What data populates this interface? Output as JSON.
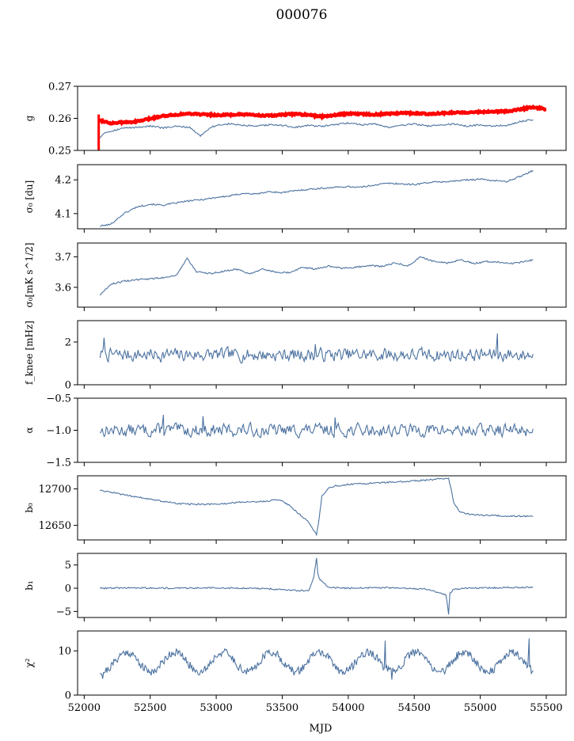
{
  "title": "000076",
  "xlabel": "MJD",
  "xlim": [
    51950,
    55650
  ],
  "xticks": [
    52000,
    52500,
    53000,
    53500,
    54000,
    54500,
    55000,
    55500
  ],
  "colors": {
    "series": "#4c72a0",
    "reference": "#ff0000"
  },
  "chart_data": [
    {
      "type": "line",
      "key": "g",
      "ylabel": "g",
      "ylim": [
        0.25,
        0.27
      ],
      "yticks": [
        0.25,
        0.26,
        0.27
      ],
      "tickfmt": 2,
      "reference": {
        "x": [
          52110,
          52200,
          52400,
          52600,
          52800,
          53000,
          53200,
          53400,
          53600,
          53800,
          54000,
          54200,
          54400,
          54600,
          54800,
          55000,
          55200,
          55300,
          55400,
          55500
        ],
        "y": [
          0.2595,
          0.2585,
          0.259,
          0.2608,
          0.2615,
          0.261,
          0.2612,
          0.2608,
          0.2614,
          0.2606,
          0.2615,
          0.2612,
          0.2617,
          0.2614,
          0.2618,
          0.262,
          0.2622,
          0.2628,
          0.2635,
          0.2628
        ]
      },
      "x": [
        52120,
        52150,
        52200,
        52300,
        52400,
        52500,
        52600,
        52700,
        52800,
        52880,
        52950,
        53000,
        53100,
        53200,
        53300,
        53400,
        53500,
        53600,
        53700,
        53800,
        53900,
        54000,
        54100,
        54200,
        54300,
        54400,
        54500,
        54600,
        54700,
        54800,
        54900,
        55000,
        55100,
        55200,
        55300,
        55400
      ],
      "y": [
        0.254,
        0.2555,
        0.256,
        0.257,
        0.2572,
        0.2576,
        0.257,
        0.2575,
        0.2572,
        0.2545,
        0.257,
        0.2578,
        0.2583,
        0.2578,
        0.2575,
        0.258,
        0.2578,
        0.2572,
        0.2578,
        0.2575,
        0.258,
        0.2586,
        0.258,
        0.2583,
        0.2572,
        0.2578,
        0.2583,
        0.2576,
        0.258,
        0.2582,
        0.2576,
        0.258,
        0.2576,
        0.2578,
        0.259,
        0.2596
      ]
    },
    {
      "type": "line",
      "key": "sigma0-du",
      "ylabel": "σ₀ [du]",
      "ylim": [
        4.055,
        4.245
      ],
      "yticks": [
        4.1,
        4.2
      ],
      "tickfmt": 1,
      "x": [
        52120,
        52200,
        52300,
        52400,
        52500,
        52600,
        52700,
        52800,
        52900,
        53000,
        53100,
        53200,
        53300,
        53400,
        53500,
        53600,
        53700,
        53800,
        53900,
        54000,
        54100,
        54200,
        54300,
        54400,
        54500,
        54600,
        54700,
        54800,
        54900,
        55000,
        55100,
        55200,
        55300,
        55400
      ],
      "y": [
        4.063,
        4.068,
        4.1,
        4.12,
        4.128,
        4.125,
        4.132,
        4.138,
        4.142,
        4.148,
        4.152,
        4.16,
        4.158,
        4.165,
        4.162,
        4.168,
        4.172,
        4.175,
        4.178,
        4.18,
        4.178,
        4.185,
        4.19,
        4.188,
        4.186,
        4.192,
        4.194,
        4.196,
        4.2,
        4.202,
        4.198,
        4.195,
        4.21,
        4.228
      ]
    },
    {
      "type": "line",
      "key": "sigma0-mk",
      "ylabel": "σ₀[mK s^1/2]",
      "ylim": [
        3.535,
        3.745
      ],
      "yticks": [
        3.6,
        3.7
      ],
      "tickfmt": 1,
      "x": [
        52120,
        52200,
        52300,
        52400,
        52500,
        52600,
        52700,
        52780,
        52850,
        52950,
        53050,
        53150,
        53250,
        53350,
        53450,
        53550,
        53650,
        53750,
        53850,
        53950,
        54050,
        54150,
        54250,
        54350,
        54450,
        54550,
        54650,
        54750,
        54850,
        54950,
        55050,
        55150,
        55250,
        55400
      ],
      "y": [
        3.575,
        3.61,
        3.62,
        3.625,
        3.628,
        3.632,
        3.64,
        3.695,
        3.65,
        3.645,
        3.652,
        3.66,
        3.645,
        3.66,
        3.65,
        3.648,
        3.665,
        3.66,
        3.67,
        3.662,
        3.665,
        3.672,
        3.668,
        3.68,
        3.67,
        3.7,
        3.685,
        3.68,
        3.69,
        3.678,
        3.685,
        3.682,
        3.678,
        3.69
      ]
    },
    {
      "type": "line",
      "key": "fknee",
      "ylabel": "f_knee [mHz]",
      "ylim": [
        0,
        3
      ],
      "yticks": [
        0,
        2
      ],
      "tickfmt": 0,
      "noise": {
        "x0": 52120,
        "x1": 55400,
        "n": 420,
        "base": 1.4,
        "amp": 0.28,
        "seed": 7
      },
      "x": [
        52150,
        53750,
        55130
      ],
      "y": [
        2.2,
        1.9,
        2.4
      ]
    },
    {
      "type": "line",
      "key": "alpha",
      "ylabel": "α",
      "ylim": [
        -1.5,
        -0.5
      ],
      "yticks": [
        -1.5,
        -1.0,
        -0.5
      ],
      "tickfmt": 1,
      "noise": {
        "x0": 52120,
        "x1": 55400,
        "n": 420,
        "base": -1.0,
        "amp": 0.09,
        "seed": 13
      },
      "x": [
        52600,
        52900,
        53900
      ],
      "y": [
        -0.76,
        -0.78,
        -0.8
      ]
    },
    {
      "type": "line",
      "key": "b0",
      "ylabel": "b₀",
      "ylim": [
        12630,
        12718
      ],
      "yticks": [
        12650,
        12700
      ],
      "tickfmt": 0,
      "x": [
        52120,
        52300,
        52500,
        52700,
        52800,
        53000,
        53200,
        53400,
        53450,
        53500,
        53550,
        53600,
        53650,
        53700,
        53750,
        53760,
        53780,
        53800,
        53850,
        53900,
        54000,
        54200,
        54400,
        54600,
        54700,
        54760,
        54780,
        54800,
        54850,
        54900,
        55000,
        55200,
        55400
      ],
      "y": [
        12698,
        12692,
        12686,
        12680,
        12679,
        12679,
        12682,
        12683,
        12686,
        12683,
        12678,
        12670,
        12662,
        12655,
        12640,
        12636,
        12660,
        12690,
        12701,
        12704,
        12706,
        12708,
        12710,
        12712,
        12714,
        12714,
        12700,
        12680,
        12668,
        12666,
        12664,
        12663,
        12662
      ]
    },
    {
      "type": "line",
      "key": "b1",
      "ylabel": "b₁",
      "ylim": [
        -6.3,
        7.5
      ],
      "yticks": [
        -5,
        0,
        5
      ],
      "tickfmt": 0,
      "x": [
        52120,
        52400,
        52700,
        53000,
        53300,
        53500,
        53700,
        53740,
        53760,
        53770,
        53780,
        53800,
        53850,
        54000,
        54300,
        54600,
        54740,
        54760,
        54770,
        54800,
        54900,
        55100,
        55400
      ],
      "y": [
        0.0,
        0.1,
        0.0,
        0.1,
        0.0,
        -0.3,
        -0.6,
        2.5,
        6.5,
        3.0,
        2.0,
        1.5,
        0.2,
        0.0,
        0.1,
        -0.2,
        -1.5,
        -5.5,
        -1.0,
        -0.3,
        0.0,
        0.1,
        0.2
      ]
    },
    {
      "type": "line",
      "key": "chi2",
      "ylabel": "χ²",
      "ylim": [
        0,
        14.5
      ],
      "yticks": [
        0,
        10
      ],
      "tickfmt": 0,
      "sine": {
        "x0": 52120,
        "x1": 55400,
        "n": 500,
        "base": 7.5,
        "amp": 2.2,
        "period": 365.25,
        "phase": 52230,
        "noise": 0.9,
        "seed": 21
      },
      "x": [
        52140,
        54280,
        54330,
        55370
      ],
      "y": [
        3.7,
        12.3,
        3.5,
        12.8
      ]
    }
  ]
}
